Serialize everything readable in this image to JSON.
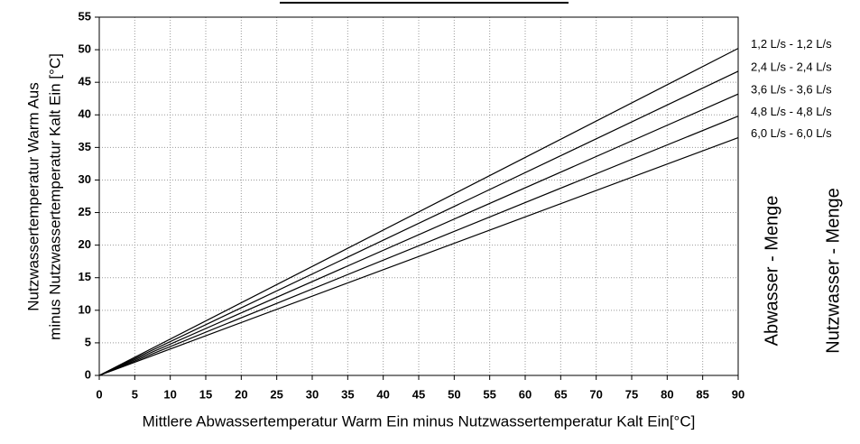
{
  "chart_data": {
    "type": "line",
    "x_label": "Mittlere Abwassertemperatur Warm Ein minus Nutzwassertemperatur Kalt Ein[°C]",
    "y_label_lines": [
      "Nutzwassertemperatur Warm Aus",
      "minus Nutzwassertemperatur Kalt Ein [°C]"
    ],
    "right_labels": [
      "Abwasser - Menge",
      "Nutzwasser - Menge"
    ],
    "x": [
      0,
      90
    ],
    "series": [
      {
        "name": "1,2 L/s - 1,2 L/s",
        "color": "#000000",
        "values": [
          0,
          50.2
        ]
      },
      {
        "name": "2,4 L/s - 2,4 L/s",
        "color": "#000000",
        "values": [
          0,
          46.7
        ]
      },
      {
        "name": "3,6 L/s - 3,6 L/s",
        "color": "#000000",
        "values": [
          0,
          43.2
        ]
      },
      {
        "name": "4,8 L/s - 4,8 L/s",
        "color": "#000000",
        "values": [
          0,
          39.8
        ]
      },
      {
        "name": "6,0 L/s - 6,0 L/s",
        "color": "#000000",
        "values": [
          0,
          36.5
        ]
      }
    ],
    "xlim": [
      0,
      90
    ],
    "ylim": [
      0,
      55
    ],
    "xticks": [
      0,
      5,
      10,
      15,
      20,
      25,
      30,
      35,
      40,
      45,
      50,
      55,
      60,
      65,
      70,
      75,
      80,
      85,
      90
    ],
    "yticks": [
      0,
      5,
      10,
      15,
      20,
      25,
      30,
      35,
      40,
      45,
      50,
      55
    ],
    "grid": true
  }
}
